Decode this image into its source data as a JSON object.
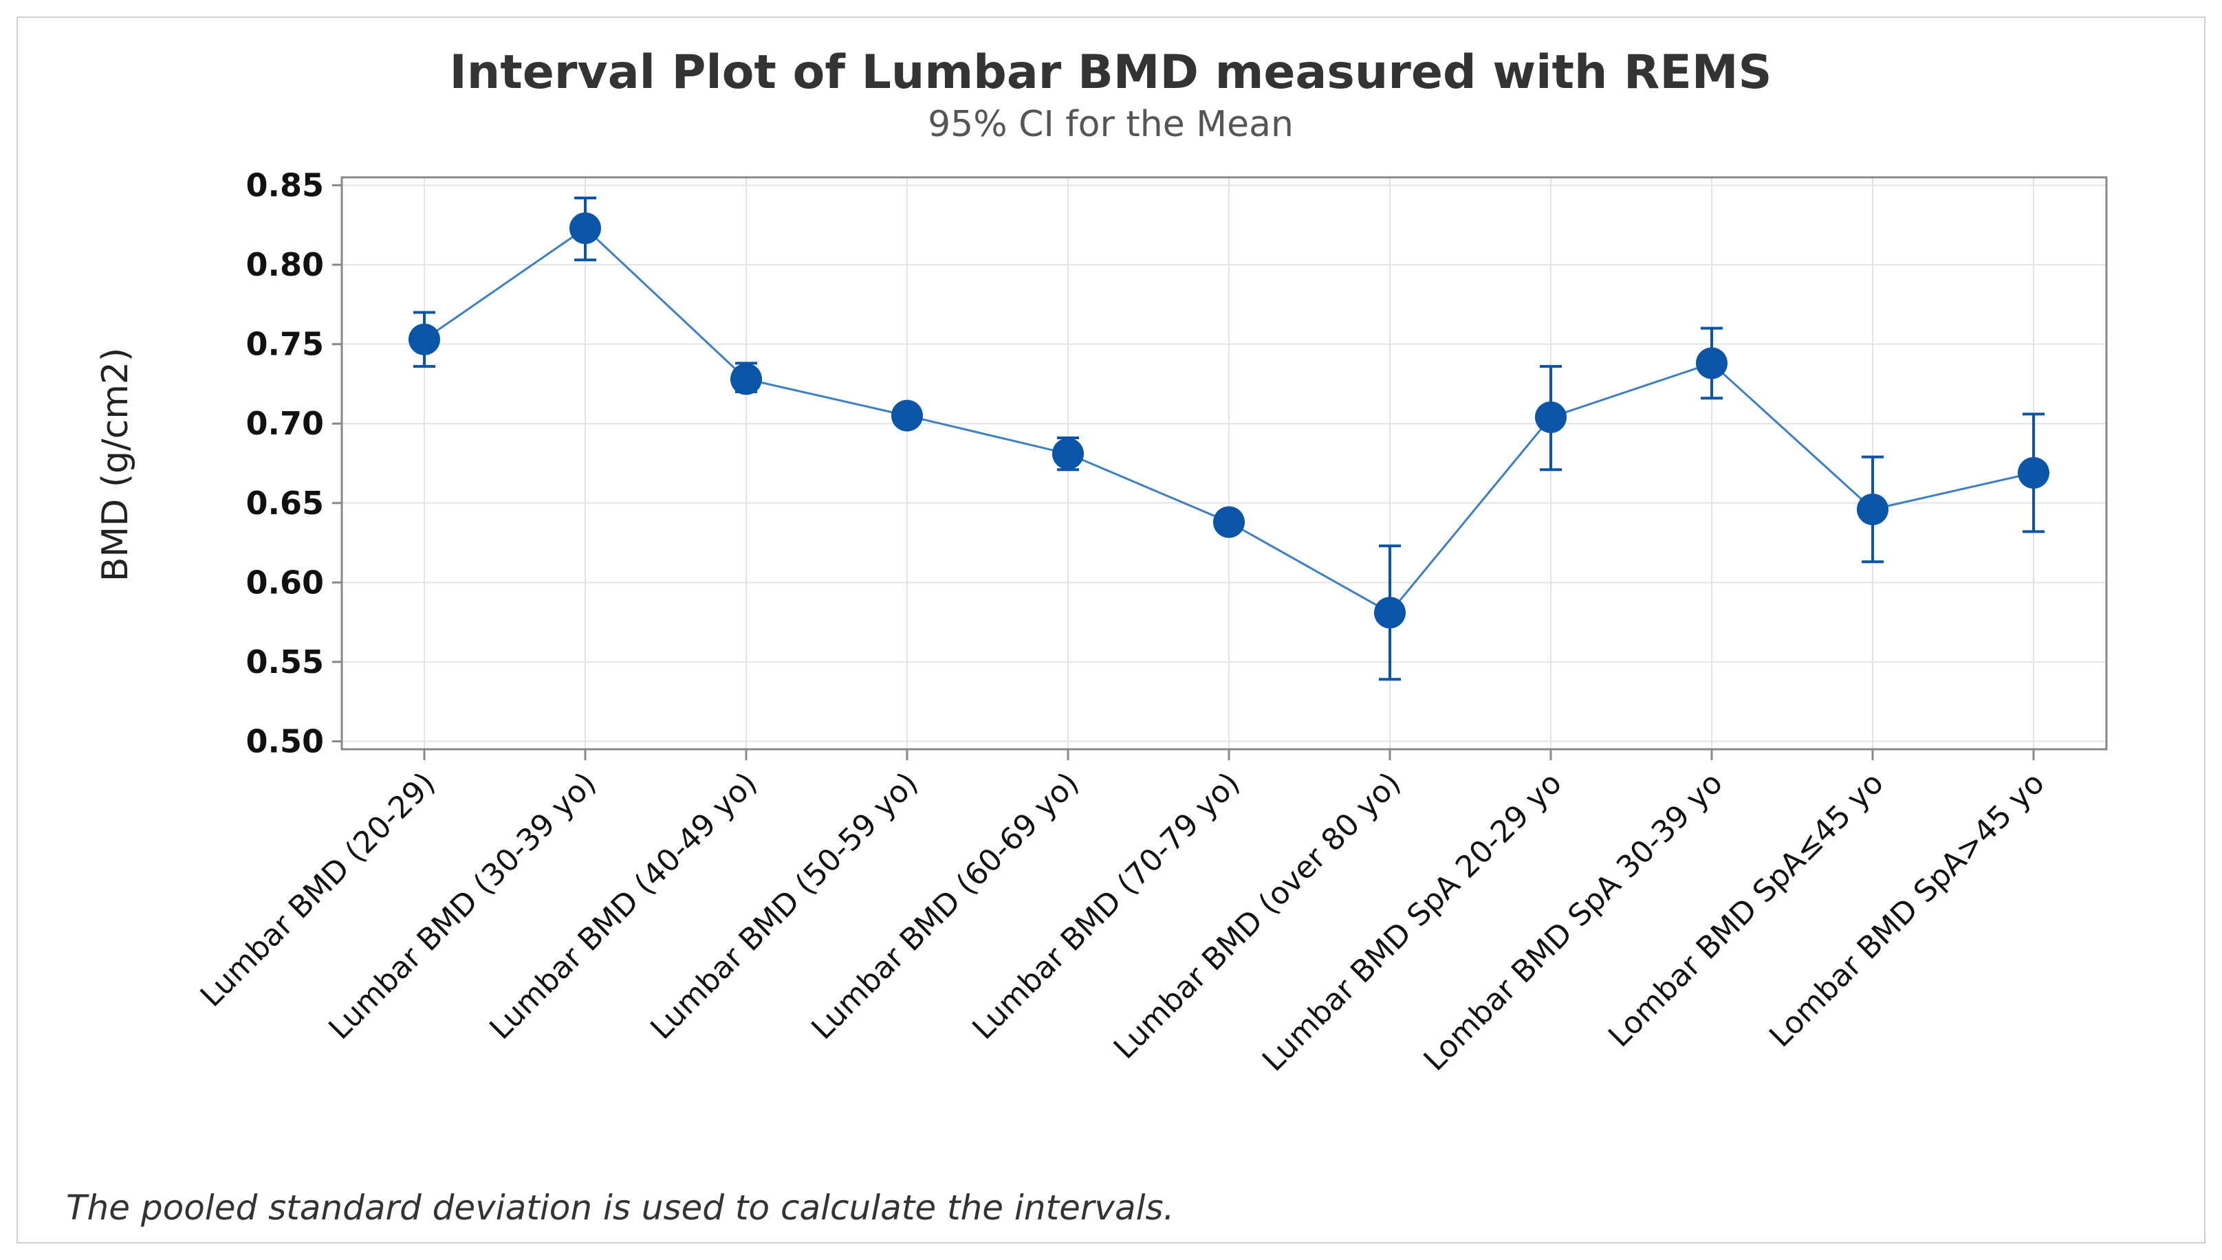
{
  "chart_data": {
    "type": "line",
    "title": "Interval Plot of Lumbar BMD measured with REMS",
    "subtitle": "95% CI for the Mean",
    "ylabel": "BMD (g/cm2)",
    "xlabel": "",
    "ylim": [
      0.495,
      0.855
    ],
    "yticks": [
      "0.85",
      "0.80",
      "0.75",
      "0.70",
      "0.65",
      "0.60",
      "0.55",
      "0.50"
    ],
    "grid": true,
    "categories": [
      "Lumbar BMD (20-29)",
      "Lumbar BMD (30-39 yo)",
      "Lumbar BMD (40-49 yo)",
      "Lumbar BMD (50-59 yo)",
      "Lumbar BMD (60-69 yo)",
      "Lumbar BMD (70-79 yo)",
      "Lumbar BMD (over 80 yo)",
      "Lumbar BMD SpA 20-29 yo",
      "Lombar BMD SpA 30-39 yo",
      "Lombar BMD SpA≤45 yo",
      "Lombar BMD SpA>45 yo"
    ],
    "series": [
      {
        "mean": [
          0.753,
          0.823,
          0.728,
          0.705,
          0.681,
          0.638,
          0.581,
          0.704,
          0.738,
          0.646,
          0.669
        ],
        "lower": [
          0.736,
          0.803,
          0.72,
          0.7,
          0.671,
          0.632,
          0.539,
          0.671,
          0.716,
          0.613,
          0.632
        ],
        "upper": [
          0.77,
          0.842,
          0.738,
          0.71,
          0.691,
          0.644,
          0.623,
          0.736,
          0.76,
          0.679,
          0.706
        ]
      }
    ],
    "colors": {
      "series": "#0a55a8",
      "line": "#3c7fc4",
      "grid": "#e3e3e3",
      "axis": "#888888"
    }
  },
  "footnote": "The pooled standard deviation is used to calculate the intervals."
}
